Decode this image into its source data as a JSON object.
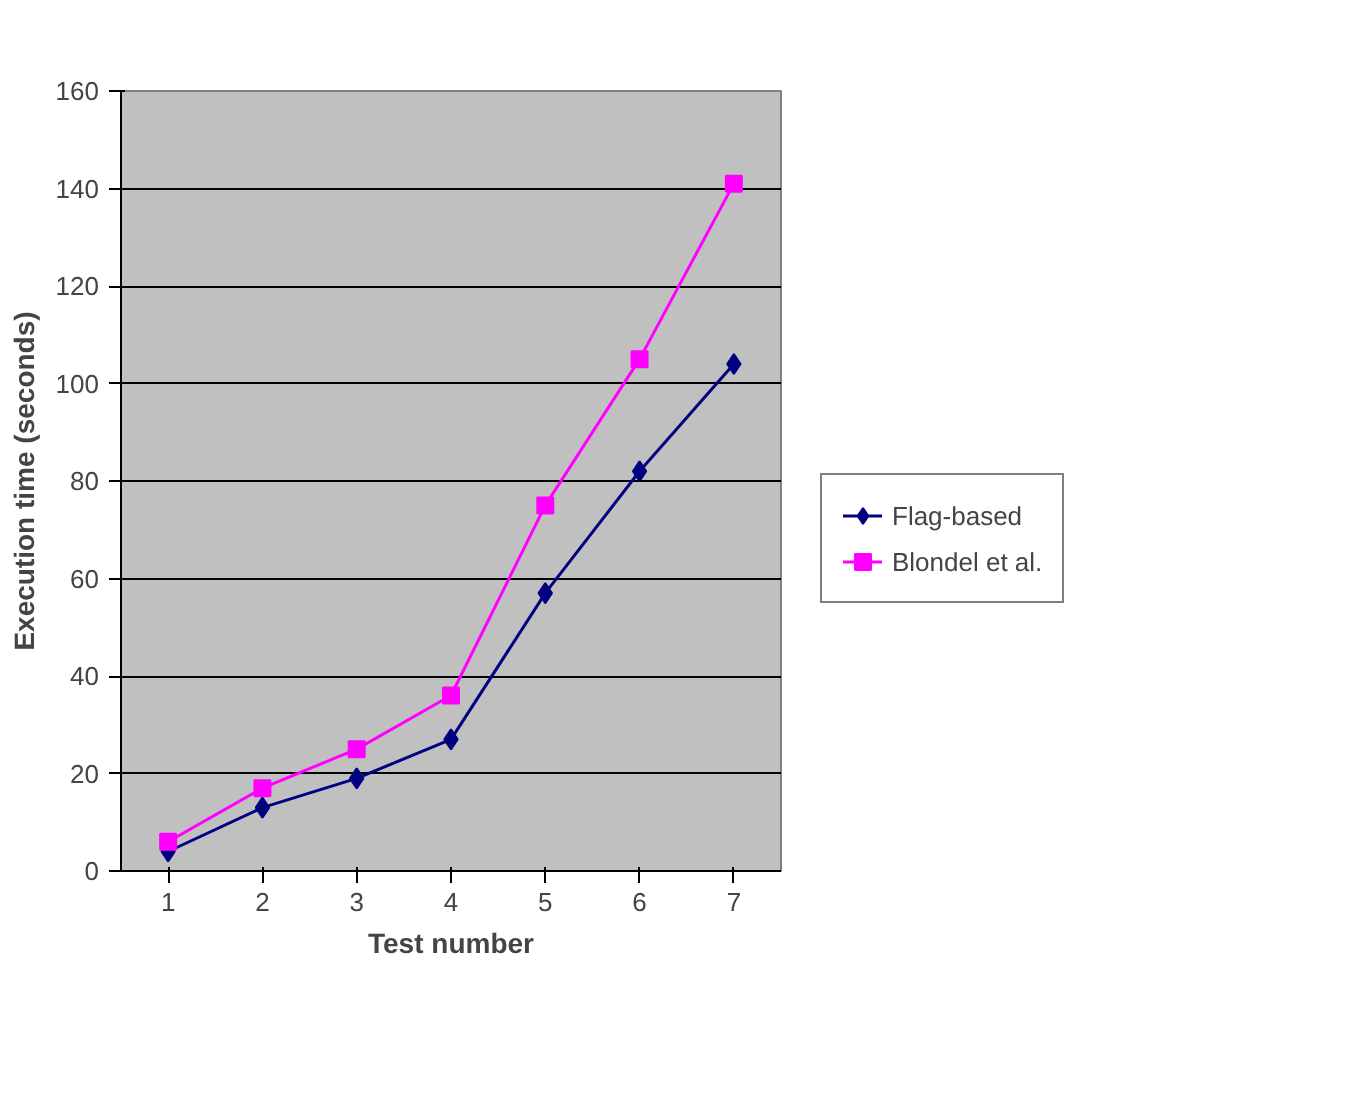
{
  "chart_data": {
    "type": "line",
    "xlabel": "Test number",
    "ylabel": "Execution time (seconds)",
    "categories": [
      "1",
      "2",
      "3",
      "4",
      "5",
      "6",
      "7"
    ],
    "series": [
      {
        "name": "Flag-based",
        "color": "#000080",
        "marker": "diamond",
        "values": [
          4,
          13,
          19,
          27,
          57,
          82,
          104
        ]
      },
      {
        "name": "Blondel et al.",
        "color": "#ff00ff",
        "marker": "square",
        "values": [
          6,
          17,
          25,
          36,
          75,
          105,
          141
        ]
      }
    ],
    "ylim": [
      0,
      160
    ],
    "yticks": [
      0,
      20,
      40,
      60,
      80,
      100,
      120,
      140,
      160
    ],
    "grid": "y",
    "legend": "right"
  }
}
